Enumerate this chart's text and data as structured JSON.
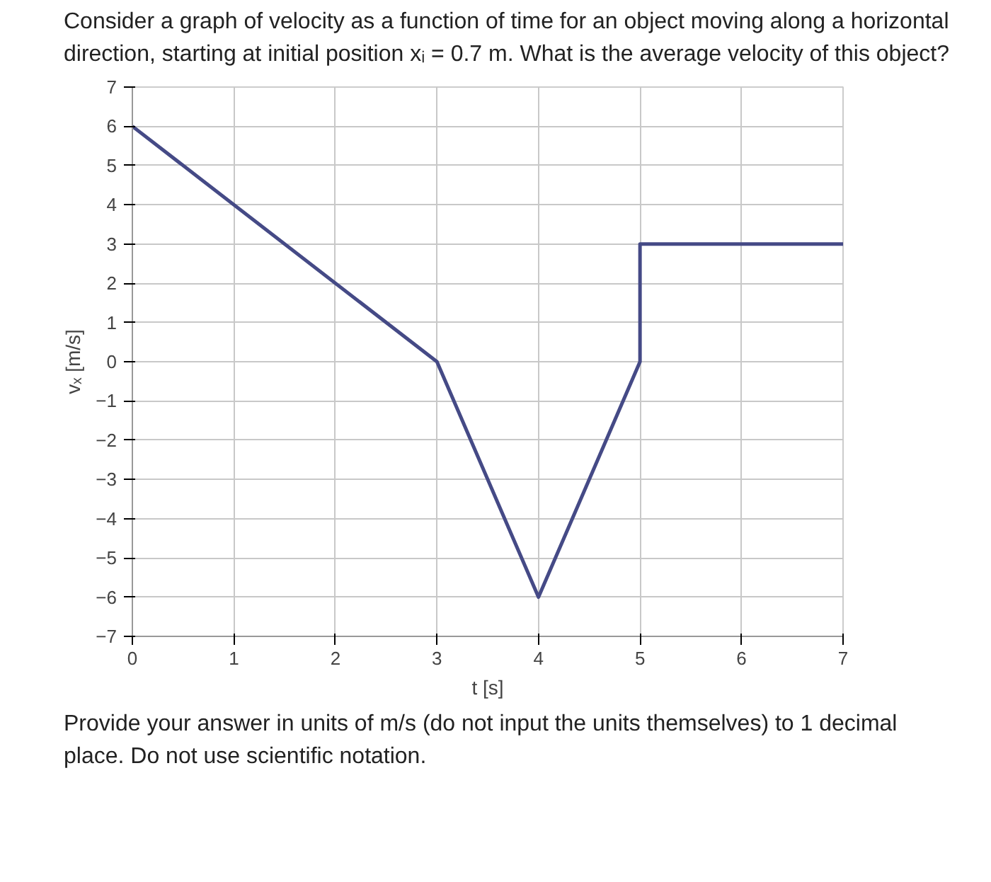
{
  "chart_data": {
    "type": "line",
    "title": "Consider a graph of velocity as a function of time for an object moving along a horizontal direction, starting at initial position xᵢ = 0.7 m. What is the average velocity of this object?",
    "annotations": [
      "Provide your answer in units of m/s (do not input the units themselves) to 1 decimal place. Do not use scientific notation."
    ],
    "xlabel": "t [s]",
    "ylabel": "vₓ [m/s]",
    "x": [
      0,
      3,
      4,
      5,
      5,
      7
    ],
    "values": [
      6,
      0,
      -6,
      0,
      3,
      3
    ],
    "color": "#454a86",
    "xlim": [
      0,
      7
    ],
    "ylim": [
      -7,
      7
    ],
    "xticks": [
      0,
      1,
      2,
      3,
      4,
      5,
      6,
      7
    ],
    "yticks": [
      7,
      6,
      5,
      4,
      3,
      2,
      1,
      0,
      -1,
      -2,
      -3,
      -4,
      -5,
      -6,
      -7
    ],
    "grid": true
  }
}
